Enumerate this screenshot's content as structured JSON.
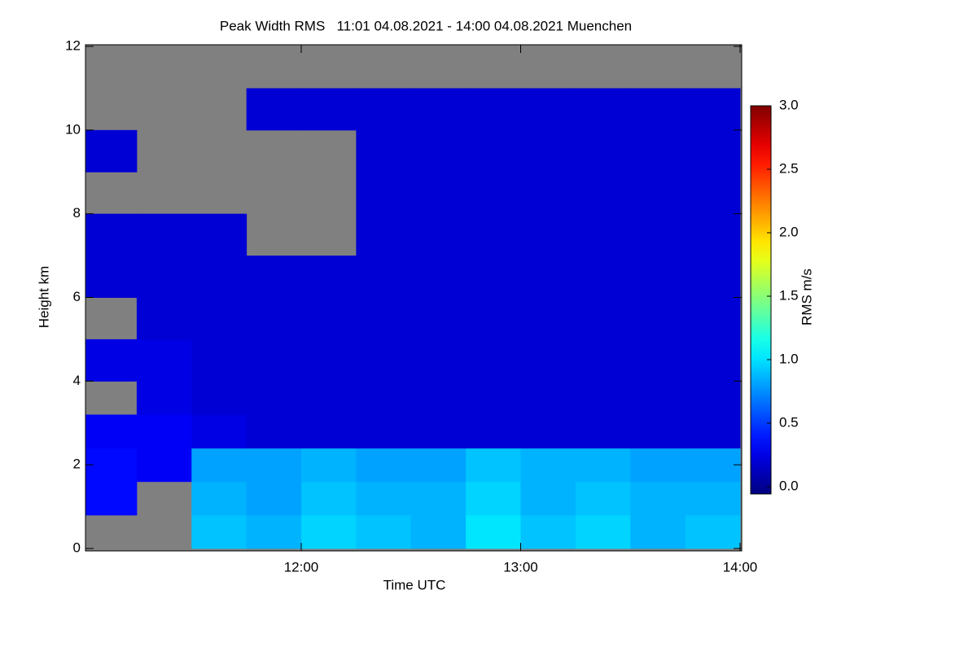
{
  "chart_data": {
    "type": "heatmap",
    "title": "Peak Width RMS   11:01 04.08.2021 - 14:00 04.08.2021 Muenchen",
    "x_label": "Time UTC",
    "y_label": "Height km",
    "xlim": [
      11.0167,
      14.0
    ],
    "xticks": [
      {
        "value": 12,
        "label": "12:00"
      },
      {
        "value": 13,
        "label": "13:00"
      },
      {
        "value": 14,
        "label": "14:00"
      }
    ],
    "ylim": [
      0,
      12
    ],
    "yticks": [
      0,
      2,
      4,
      6,
      8,
      10,
      12
    ],
    "xbins": [
      11.0167,
      11.25,
      11.5,
      11.75,
      12.0,
      12.25,
      12.5,
      12.75,
      13.0,
      13.25,
      13.5,
      13.75,
      14.0
    ],
    "ybins": [
      0,
      0.8,
      1.6,
      2.4,
      3.2,
      4,
      5,
      6,
      7,
      8,
      9,
      10,
      11,
      12
    ],
    "z": [
      [
        null,
        null,
        0.95,
        0.9,
        1.0,
        0.95,
        0.9,
        1.05,
        0.95,
        1.0,
        0.9,
        0.95
      ],
      [
        0.4,
        null,
        0.9,
        0.85,
        0.95,
        0.9,
        0.9,
        1.0,
        0.9,
        0.95,
        0.9,
        0.9
      ],
      [
        0.4,
        0.35,
        0.85,
        0.85,
        0.9,
        0.85,
        0.85,
        0.95,
        0.9,
        0.9,
        0.85,
        0.85
      ],
      [
        0.35,
        0.35,
        0.3,
        0.25,
        0.25,
        0.25,
        0.25,
        0.25,
        0.25,
        0.25,
        0.25,
        0.25
      ],
      [
        null,
        0.3,
        0.25,
        0.25,
        0.25,
        0.25,
        0.25,
        0.25,
        0.25,
        0.25,
        0.25,
        0.25
      ],
      [
        0.3,
        0.3,
        0.25,
        0.25,
        0.25,
        0.25,
        0.25,
        0.25,
        0.25,
        0.25,
        0.25,
        0.25
      ],
      [
        null,
        0.25,
        0.25,
        0.25,
        0.25,
        0.25,
        0.25,
        0.25,
        0.25,
        0.25,
        0.25,
        0.25
      ],
      [
        0.25,
        0.25,
        0.25,
        0.25,
        0.25,
        0.25,
        0.25,
        0.25,
        0.25,
        0.25,
        0.25,
        0.25
      ],
      [
        0.25,
        0.25,
        0.25,
        null,
        null,
        0.25,
        0.25,
        0.25,
        0.25,
        0.25,
        0.25,
        0.25
      ],
      [
        null,
        null,
        null,
        null,
        null,
        0.25,
        0.25,
        0.25,
        0.25,
        0.25,
        0.25,
        0.25
      ],
      [
        0.25,
        null,
        null,
        null,
        null,
        0.25,
        0.25,
        0.25,
        0.25,
        0.25,
        0.25,
        0.25
      ],
      [
        null,
        null,
        null,
        0.25,
        0.25,
        0.25,
        0.25,
        0.25,
        0.25,
        0.25,
        0.25,
        0.25
      ],
      [
        null,
        null,
        null,
        null,
        null,
        null,
        null,
        null,
        null,
        null,
        null,
        null
      ]
    ],
    "nodata_color": "#808080",
    "colormap": "jet",
    "colorbar": {
      "label": "RMS m/s",
      "lim": [
        0,
        3
      ],
      "ticks": [
        {
          "value": 0,
          "label": "0.0"
        },
        {
          "value": 0.5,
          "label": "0.5"
        },
        {
          "value": 1,
          "label": "1.0"
        },
        {
          "value": 1.5,
          "label": "1.5"
        },
        {
          "value": 2,
          "label": "2.0"
        },
        {
          "value": 2.5,
          "label": "2.5"
        },
        {
          "value": 3,
          "label": "3.0"
        }
      ]
    }
  }
}
